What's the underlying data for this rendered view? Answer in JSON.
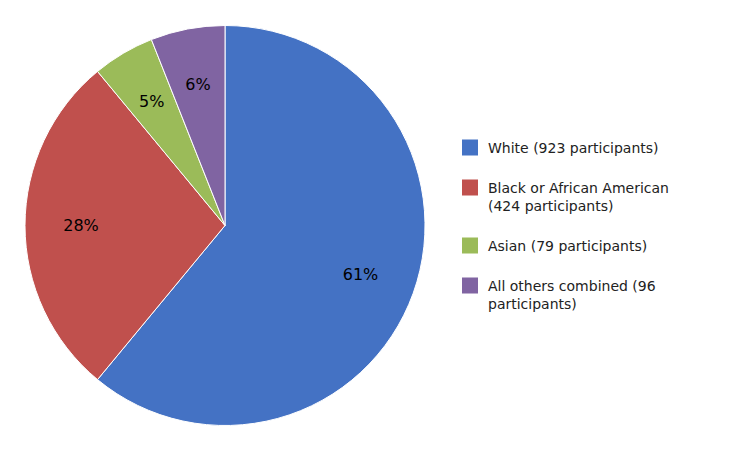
{
  "chart_data": {
    "type": "pie",
    "categories": [
      "White (923 participants)",
      "Black or African American\n(424 participants)",
      "Asian (79 participants)",
      "All others combined (96\nparticipants)"
    ],
    "values": [
      61,
      28,
      5,
      6
    ],
    "value_labels": [
      "61%",
      "28%",
      "5%",
      "6%"
    ],
    "colors": [
      "#4472C4",
      "#C0504D",
      "#9BBB59",
      "#8064A2"
    ],
    "data_labels": true,
    "legend": "right"
  }
}
